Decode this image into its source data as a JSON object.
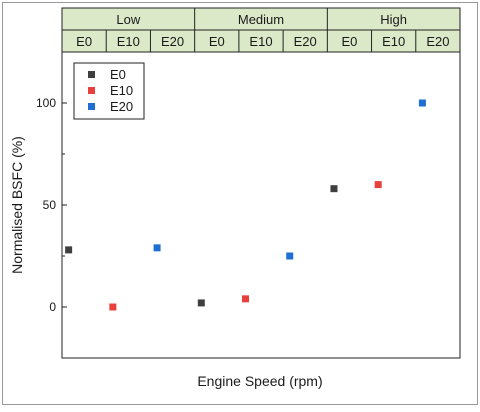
{
  "chart_data": {
    "type": "scatter",
    "title": "",
    "xlabel": "Engine Speed (rpm)",
    "ylabel": "Normalised BSFC (%)",
    "ylim": [
      -25,
      125
    ],
    "yticks": [
      0,
      50,
      100
    ],
    "grid": false,
    "legend_position": "top-left",
    "header_groups": [
      "Low",
      "Medium",
      "High"
    ],
    "header_fuels": [
      "E0",
      "E10",
      "E20",
      "E0",
      "E10",
      "E20",
      "E0",
      "E10",
      "E20"
    ],
    "header_color": "#dce9c9",
    "series": [
      {
        "name": "E0",
        "color": "#3f3f3f",
        "points": [
          {
            "group": "Low",
            "y": 28
          },
          {
            "group": "Medium",
            "y": 2
          },
          {
            "group": "High",
            "y": 58
          }
        ]
      },
      {
        "name": "E10",
        "color": "#e8403a",
        "points": [
          {
            "group": "Low",
            "y": 0
          },
          {
            "group": "Medium",
            "y": 4
          },
          {
            "group": "High",
            "y": 60
          }
        ]
      },
      {
        "name": "E20",
        "color": "#1f6fd1",
        "points": [
          {
            "group": "Low",
            "y": 29
          },
          {
            "group": "Medium",
            "y": 25
          },
          {
            "group": "High",
            "y": 100
          }
        ]
      }
    ]
  }
}
